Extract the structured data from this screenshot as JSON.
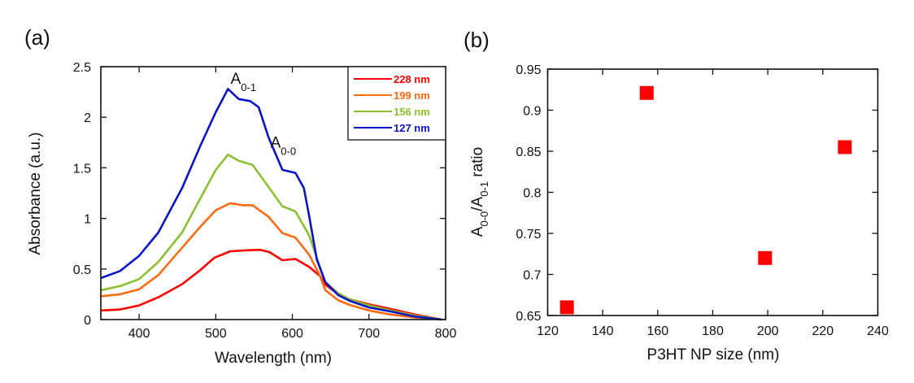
{
  "chart_data": [
    {
      "panel": "(a)",
      "type": "line",
      "title": "",
      "xlabel": "Wavelength (nm)",
      "ylabel": "Absorbance (a.u.)",
      "xlim": [
        350,
        800
      ],
      "ylim": [
        0,
        2.5
      ],
      "xticks": [
        400,
        500,
        600,
        700,
        800
      ],
      "yticks": [
        0,
        0.5,
        1,
        1.5,
        2,
        2.5
      ],
      "xtick_labels": [
        "400",
        "500",
        "600",
        "700",
        "800"
      ],
      "ytick_labels": [
        "0",
        "0.5",
        "1",
        "1.5",
        "2",
        "2.5"
      ],
      "grid": false,
      "legend_position": "top-right",
      "annotations": [
        {
          "text": "A",
          "sub": "0-1",
          "x": 530,
          "y": 2.33
        },
        {
          "text": "A",
          "sub": "0-0",
          "x": 582,
          "y": 1.7
        }
      ],
      "series": [
        {
          "name": "228 nm",
          "color": "#ff0000",
          "x": [
            350,
            375,
            400,
            425,
            456,
            480,
            498,
            519,
            540,
            558,
            570,
            587,
            604,
            622,
            636,
            643,
            660,
            675,
            700,
            728,
            760,
            795
          ],
          "y": [
            0.09,
            0.1,
            0.14,
            0.22,
            0.35,
            0.49,
            0.61,
            0.675,
            0.685,
            0.69,
            0.667,
            0.587,
            0.6,
            0.52,
            0.43,
            0.345,
            0.25,
            0.2,
            0.15,
            0.105,
            0.05,
            0.0
          ]
        },
        {
          "name": "199 nm",
          "color": "#ff6a10",
          "x": [
            350,
            375,
            400,
            425,
            456,
            480,
            500,
            519,
            535,
            548,
            569,
            587,
            604,
            622,
            636,
            643,
            660,
            675,
            700,
            728,
            760,
            795
          ],
          "y": [
            0.23,
            0.25,
            0.3,
            0.44,
            0.71,
            0.92,
            1.08,
            1.15,
            1.13,
            1.13,
            1.015,
            0.855,
            0.81,
            0.64,
            0.43,
            0.29,
            0.19,
            0.145,
            0.09,
            0.05,
            0.02,
            0.0
          ]
        },
        {
          "name": "156 nm",
          "color": "#8dc02d",
          "x": [
            350,
            375,
            400,
            425,
            456,
            480,
            500,
            516,
            530,
            548,
            569,
            587,
            604,
            622,
            636,
            643,
            660,
            675,
            700,
            728,
            760,
            795
          ],
          "y": [
            0.29,
            0.33,
            0.4,
            0.57,
            0.86,
            1.2,
            1.48,
            1.63,
            1.57,
            1.53,
            1.31,
            1.12,
            1.07,
            0.83,
            0.52,
            0.37,
            0.26,
            0.2,
            0.14,
            0.09,
            0.04,
            0.0
          ]
        },
        {
          "name": "127 nm",
          "color": "#0a14c8",
          "x": [
            350,
            375,
            400,
            425,
            456,
            480,
            500,
            516,
            530,
            545,
            556,
            569,
            587,
            604,
            615,
            622,
            632,
            643,
            660,
            675,
            700,
            728,
            760,
            795
          ],
          "y": [
            0.41,
            0.48,
            0.63,
            0.86,
            1.3,
            1.72,
            2.05,
            2.28,
            2.18,
            2.16,
            2.1,
            1.8,
            1.48,
            1.45,
            1.3,
            1.02,
            0.59,
            0.37,
            0.24,
            0.185,
            0.12,
            0.08,
            0.03,
            0.0
          ]
        }
      ]
    },
    {
      "panel": "(b)",
      "type": "scatter",
      "title": "",
      "xlabel": "P3HT NP size (nm)",
      "ylabel": "A0-0/A0-1 ratio",
      "ylabel_parts": {
        "a": "A",
        "sub1": "0-0",
        "slash": "/A",
        "sub2": "0-1",
        "rest": " ratio"
      },
      "xlim": [
        120,
        240
      ],
      "ylim": [
        0.65,
        0.95
      ],
      "xticks": [
        120,
        140,
        160,
        180,
        200,
        220,
        240
      ],
      "yticks": [
        0.65,
        0.7,
        0.75,
        0.8,
        0.85,
        0.9,
        0.95
      ],
      "xtick_labels": [
        "120",
        "140",
        "160",
        "180",
        "200",
        "220",
        "240"
      ],
      "ytick_labels": [
        "0.65",
        "0.7",
        "0.75",
        "0.8",
        "0.85",
        "0.9",
        "0.95"
      ],
      "grid": false,
      "marker": "square",
      "marker_color": "#ff0000",
      "x": [
        127,
        156,
        199,
        228
      ],
      "y": [
        0.66,
        0.921,
        0.72,
        0.855
      ]
    }
  ]
}
